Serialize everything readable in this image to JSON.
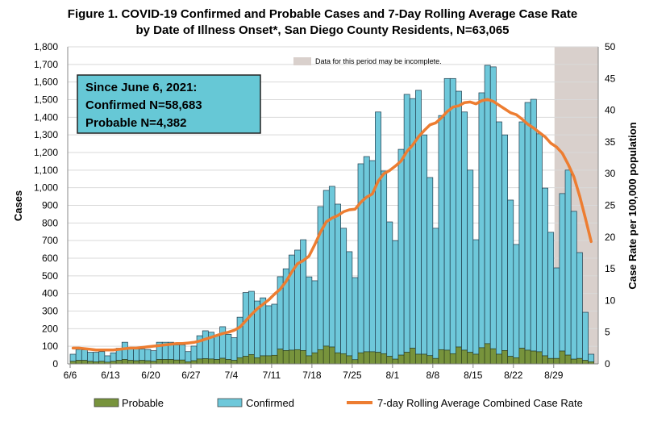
{
  "chart_data": {
    "type": "bar+line",
    "title_line1": "Figure 1. COVID-19 Confirmed and Probable Cases and 7-Day Rolling Average Case Rate",
    "title_line2": "by Date of Illness Onset*, San Diego County Residents, N=63,065",
    "ylabel": "Cases",
    "y2label": "Case Rate per 100,000 population",
    "ylim": [
      0,
      1800
    ],
    "y2lim": [
      0,
      50
    ],
    "yticks": [
      "0",
      "100",
      "200",
      "300",
      "400",
      "500",
      "600",
      "700",
      "800",
      "900",
      "1,000",
      "1,100",
      "1,200",
      "1,300",
      "1,400",
      "1,500",
      "1,600",
      "1,700",
      "1,800"
    ],
    "y2ticks": [
      "0",
      "5",
      "10",
      "15",
      "20",
      "25",
      "30",
      "35",
      "40",
      "45",
      "50"
    ],
    "xtick_labels": [
      "6/6",
      "6/13",
      "6/20",
      "6/27",
      "7/4",
      "7/11",
      "7/18",
      "7/25",
      "8/1",
      "8/8",
      "8/15",
      "8/22",
      "8/29"
    ],
    "grid": true,
    "stacked": true,
    "legend_position": "bottom",
    "annotation": {
      "line1": "Since June 6, 2021:",
      "line2": "Confirmed N=58,683",
      "line3": "Probable N=4,382"
    },
    "incomplete_note": "Data for this period may be incomplete.",
    "incomplete_from": "8/29",
    "categories": [
      "6/6",
      "6/7",
      "6/8",
      "6/9",
      "6/10",
      "6/11",
      "6/12",
      "6/13",
      "6/14",
      "6/15",
      "6/16",
      "6/17",
      "6/18",
      "6/19",
      "6/20",
      "6/21",
      "6/22",
      "6/23",
      "6/24",
      "6/25",
      "6/26",
      "6/27",
      "6/28",
      "6/29",
      "6/30",
      "7/1",
      "7/2",
      "7/3",
      "7/4",
      "7/5",
      "7/6",
      "7/7",
      "7/8",
      "7/9",
      "7/10",
      "7/11",
      "7/12",
      "7/13",
      "7/14",
      "7/15",
      "7/16",
      "7/17",
      "7/18",
      "7/19",
      "7/20",
      "7/21",
      "7/22",
      "7/23",
      "7/24",
      "7/25",
      "7/26",
      "7/27",
      "7/28",
      "7/29",
      "7/30",
      "7/31",
      "8/1",
      "8/2",
      "8/3",
      "8/4",
      "8/5",
      "8/6",
      "8/7",
      "8/8",
      "8/9",
      "8/10",
      "8/11",
      "8/12",
      "8/13",
      "8/14",
      "8/15",
      "8/16",
      "8/17",
      "8/18",
      "8/19",
      "8/20",
      "8/21",
      "8/22",
      "8/23",
      "8/24",
      "8/25",
      "8/26",
      "8/27",
      "8/28",
      "8/29",
      "8/30",
      "8/31",
      "9/1",
      "9/2",
      "9/3",
      "9/4"
    ],
    "series": [
      {
        "name": "Probable",
        "type": "bar",
        "color": "#77933c",
        "values": [
          15,
          20,
          20,
          15,
          12,
          15,
          10,
          15,
          20,
          25,
          20,
          18,
          20,
          18,
          15,
          25,
          25,
          25,
          22,
          22,
          12,
          18,
          28,
          30,
          28,
          25,
          32,
          25,
          20,
          35,
          43,
          53,
          35,
          46,
          46,
          49,
          84,
          76,
          78,
          81,
          76,
          46,
          63,
          81,
          101,
          96,
          63,
          58,
          46,
          24,
          63,
          69,
          69,
          66,
          58,
          43,
          27,
          50,
          66,
          89,
          55,
          55,
          47,
          31,
          81,
          78,
          58,
          96,
          78,
          66,
          55,
          92,
          115,
          86,
          55,
          76,
          43,
          35,
          89,
          78,
          73,
          69,
          46,
          31,
          31,
          73,
          50,
          27,
          31,
          20,
          12
        ]
      },
      {
        "name": "Confirmed",
        "type": "bar",
        "color": "#6ec8da",
        "values": [
          40,
          62,
          60,
          51,
          54,
          55,
          36,
          48,
          69,
          98,
          73,
          66,
          64,
          64,
          60,
          98,
          98,
          98,
          86,
          86,
          58,
          83,
          132,
          158,
          152,
          137,
          179,
          143,
          129,
          230,
          362,
          359,
          322,
          329,
          284,
          290,
          411,
          464,
          540,
          565,
          629,
          448,
          409,
          812,
          884,
          912,
          844,
          712,
          591,
          466,
          1073,
          1108,
          1085,
          1364,
          1037,
          763,
          673,
          1168,
          1464,
          1417,
          1498,
          1245,
          1011,
          739,
          1329,
          1542,
          1562,
          1452,
          1352,
          1034,
          650,
          1447,
          1580,
          1600,
          1319,
          1224,
          887,
          643,
          1285,
          1406,
          1429,
          1237,
          952,
          716,
          514,
          894,
          1050,
          839,
          601,
          273,
          43
        ]
      },
      {
        "name": "7-day Rolling Average Combined Case Rate",
        "type": "line",
        "axis": "right",
        "color": "#ed7d31",
        "values": [
          2.5,
          2.5,
          2.4,
          2.3,
          2.2,
          2.2,
          2.2,
          2.2,
          2.3,
          2.4,
          2.5,
          2.5,
          2.6,
          2.7,
          2.8,
          2.9,
          3.0,
          3.1,
          3.2,
          3.2,
          3.3,
          3.4,
          3.6,
          3.9,
          4.2,
          4.5,
          4.8,
          5.0,
          5.3,
          5.8,
          6.8,
          7.8,
          8.7,
          9.4,
          10.1,
          11.0,
          11.8,
          13.0,
          14.5,
          15.8,
          16.3,
          17.0,
          18.8,
          20.8,
          22.4,
          23.0,
          23.4,
          24.0,
          24.3,
          24.4,
          25.5,
          26.3,
          26.8,
          28.8,
          30.0,
          30.5,
          31.2,
          32.0,
          33.5,
          34.5,
          35.8,
          36.8,
          37.7,
          38.0,
          38.8,
          39.8,
          40.5,
          40.7,
          41.2,
          41.3,
          41.0,
          41.5,
          41.7,
          41.4,
          40.8,
          40.2,
          39.6,
          39.3,
          38.6,
          37.8,
          37.2,
          36.5,
          35.8,
          34.8,
          34.2,
          33.2,
          31.5,
          29.5,
          26.5,
          23.0,
          19.3
        ]
      }
    ],
    "colors": {
      "shade": "#d9d0cc",
      "grid": "#d9d9d9",
      "annotation_fill": "#66c8d6"
    }
  }
}
